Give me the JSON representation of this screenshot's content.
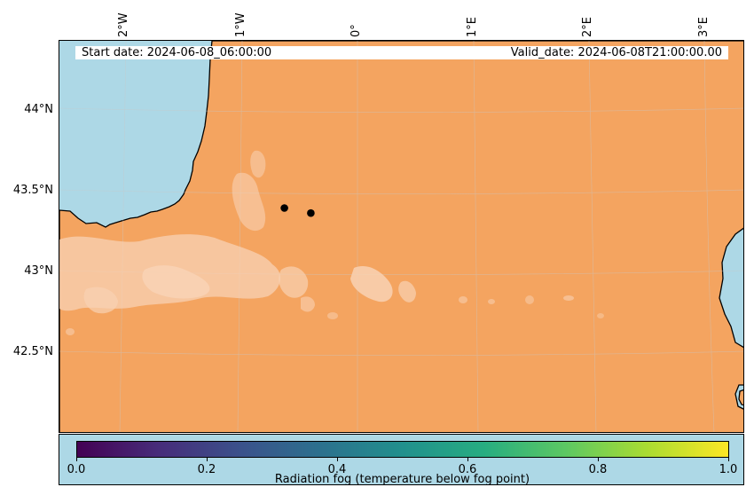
{
  "map": {
    "start_date": "Start date: 2024-06-08_06:00:00",
    "valid_date": "Valid_date: 2024-06-08T21:00:00.00",
    "longitude_labels": [
      "2°W",
      "1°W",
      "0°",
      "1°E",
      "2°E",
      "3°E"
    ],
    "latitude_labels": [
      "44°N",
      "43.5°N",
      "43°N",
      "42.5°N"
    ],
    "colors": {
      "land_fill": "#f4a460",
      "sea": "#add8e6",
      "fog_patches": "#f8d2b4",
      "markers": "#000000",
      "gridlines": "#c8c8c8"
    },
    "gridlines": true,
    "markers": [
      {
        "name": "site-marker-west",
        "lon": -0.43,
        "lat": 43.39
      },
      {
        "name": "site-marker-east",
        "lon": -0.21,
        "lat": 43.36
      }
    ]
  },
  "colorbar": {
    "label": "Radiation fog (temperature below fog point)",
    "colormap": "viridis",
    "range": [
      0.0,
      1.0
    ],
    "tick_labels": [
      "0.0",
      "0.2",
      "0.4",
      "0.6",
      "0.8",
      "1.0"
    ],
    "gradient_colors": [
      "#440154",
      "#472c7a",
      "#3b518b",
      "#2c718e",
      "#21908d",
      "#27ad81",
      "#5cc863",
      "#aadc32",
      "#fde725"
    ]
  }
}
